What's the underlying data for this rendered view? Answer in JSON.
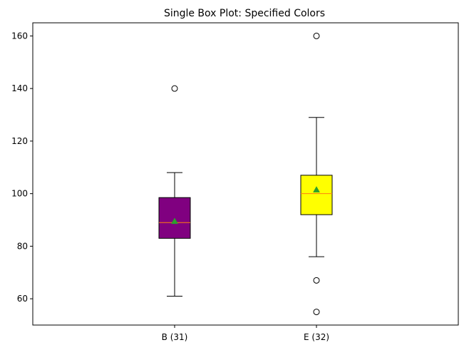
{
  "chart_data": {
    "type": "box",
    "title": "Single Box Plot: Specified Colors",
    "xlabel": "",
    "ylabel": "",
    "categories": [
      "B (31)",
      "E (32)"
    ],
    "ylim": [
      50,
      165
    ],
    "yticks": [
      60,
      80,
      100,
      120,
      140,
      160
    ],
    "grid": false,
    "boxes": [
      {
        "label": "B (31)",
        "whisker_low": 61,
        "q1": 83,
        "median": 89,
        "q3": 98.5,
        "whisker_high": 108,
        "mean": 89.5,
        "outliers": [
          140
        ],
        "color": "#800080"
      },
      {
        "label": "E (32)",
        "whisker_low": 76,
        "q1": 92,
        "median": 100,
        "q3": 107,
        "whisker_high": 129,
        "mean": 101.5,
        "outliers": [
          160,
          67,
          55
        ],
        "color": "#ffff00"
      }
    ],
    "median_color": "#ff7f0e",
    "mean_marker_color": "#2ca02c",
    "line_color": "#000000"
  }
}
